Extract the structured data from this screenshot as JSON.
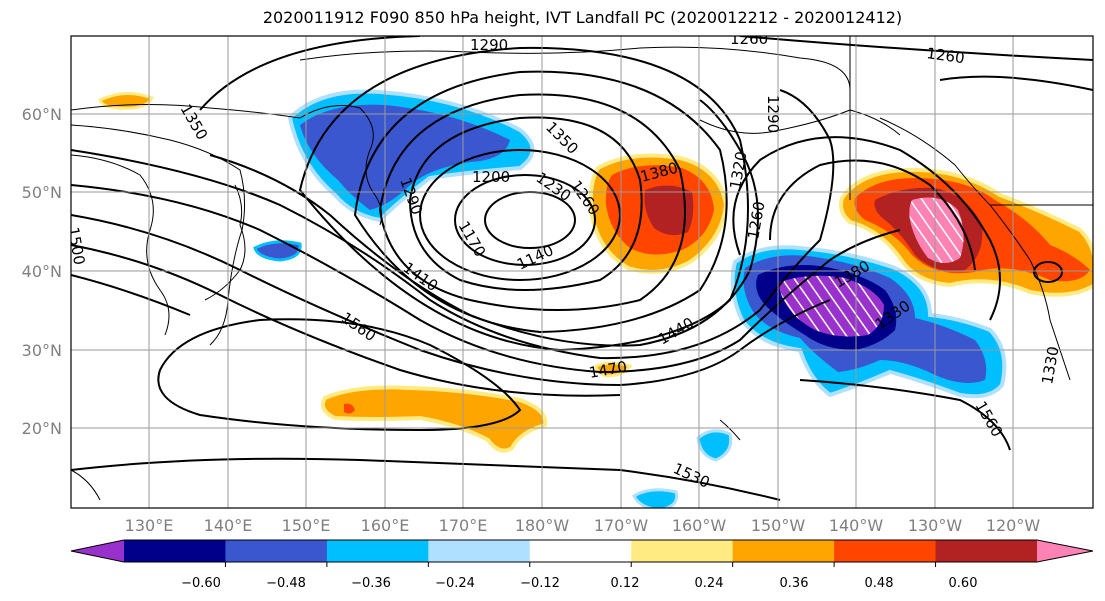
{
  "title": "2020011912 F090 850 hPa height, IVT Landfall PC (2020012212 - 2020012412)",
  "lat_labels": [
    "60°N",
    "50°N",
    "40°N",
    "30°N",
    "20°N"
  ],
  "lon_labels": [
    "130°E",
    "140°E",
    "150°E",
    "160°E",
    "170°E",
    "180°W",
    "170°W",
    "160°W",
    "150°W",
    "140°W",
    "130°W",
    "120°W"
  ],
  "contour_labels": [
    "1290",
    "1260",
    "1260",
    "1350",
    "1350",
    "1380",
    "1290",
    "1200",
    "1230",
    "1260",
    "1170",
    "1140",
    "1500",
    "1410",
    "1320",
    "1260",
    "1290",
    "1380",
    "1330",
    "1560",
    "1440",
    "1470",
    "1560",
    "1530",
    "1330"
  ],
  "colorbar": {
    "ticks": [
      "−0.60",
      "−0.48",
      "−0.36",
      "−0.24",
      "−0.12",
      "0.12",
      "0.24",
      "0.36",
      "0.48",
      "0.60"
    ],
    "colors": [
      "#9932CC",
      "#00008B",
      "#3A57CF",
      "#00BFFF",
      "#B0E0FF",
      "#FFFFFF",
      "#FFEB82",
      "#FFA500",
      "#FF4500",
      "#B22222",
      "#FF82B4"
    ]
  }
}
